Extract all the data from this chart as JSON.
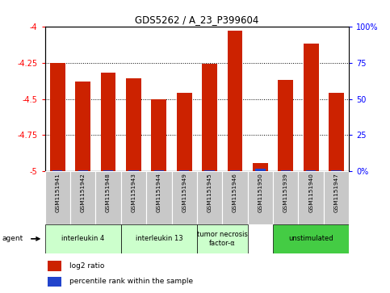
{
  "title": "GDS5262 / A_23_P399604",
  "samples": [
    "GSM1151941",
    "GSM1151942",
    "GSM1151948",
    "GSM1151943",
    "GSM1151944",
    "GSM1151949",
    "GSM1151945",
    "GSM1151946",
    "GSM1151950",
    "GSM1151939",
    "GSM1151940",
    "GSM1151947"
  ],
  "log2_values": [
    -4.25,
    -4.38,
    -4.32,
    -4.36,
    -4.5,
    -4.46,
    -4.26,
    -4.03,
    -4.94,
    -4.37,
    -4.12,
    -4.46
  ],
  "percentile_values": [
    1,
    1,
    1,
    1,
    1,
    1,
    1,
    1,
    2,
    1,
    1,
    1
  ],
  "ylim_left": [
    -5.0,
    -4.0
  ],
  "ylim_right": [
    0,
    100
  ],
  "yticks_left": [
    -5.0,
    -4.75,
    -4.5,
    -4.25,
    -4.0
  ],
  "yticks_right": [
    0,
    25,
    50,
    75,
    100
  ],
  "ytick_labels_left": [
    "-5",
    "-4.75",
    "-4.5",
    "-4.25",
    "-4"
  ],
  "ytick_labels_right": [
    "0%",
    "25",
    "50",
    "75",
    "100%"
  ],
  "group_spans": [
    {
      "start": 0,
      "end": 2,
      "label": "interleukin 4",
      "color": "#ccffcc"
    },
    {
      "start": 3,
      "end": 5,
      "label": "interleukin 13",
      "color": "#ccffcc"
    },
    {
      "start": 6,
      "end": 7,
      "label": "tumor necrosis\nfactor-α",
      "color": "#ccffcc"
    },
    {
      "start": 9,
      "end": 11,
      "label": "unstimulated",
      "color": "#44cc44"
    }
  ],
  "bar_color": "#cc2200",
  "percentile_color": "#2244cc",
  "background_color": "#ffffff",
  "sample_bg_color": "#c8c8c8",
  "agent_label": "agent",
  "legend_items": [
    {
      "color": "#cc2200",
      "label": "log2 ratio"
    },
    {
      "color": "#2244cc",
      "label": "percentile rank within the sample"
    }
  ]
}
